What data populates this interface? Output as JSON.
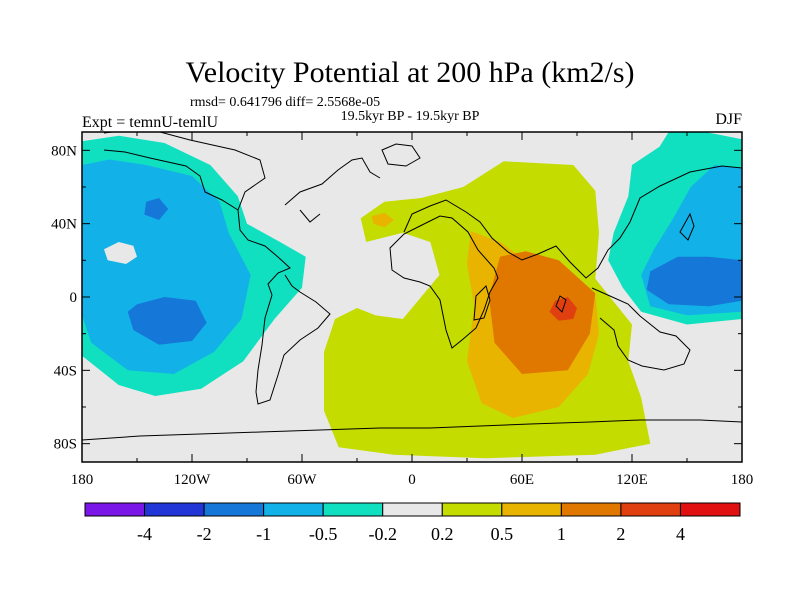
{
  "chart_data": {
    "type": "filled-contour-map",
    "title": "Velocity Potential at 200 hPa (km2/s)",
    "stats_text": "rmsd= 0.641796 diff= 2.5568e-05",
    "subtitle": "19.5kyr BP - 19.5kyr BP",
    "left_label": "Expt = temnU-temlU",
    "right_label": "DJF",
    "x_axis": {
      "range": [
        -180,
        180
      ],
      "ticks": [
        -180,
        -120,
        -60,
        0,
        60,
        120,
        180
      ],
      "tick_labels": [
        "180",
        "120W",
        "60W",
        "0",
        "60E",
        "120E",
        "180"
      ]
    },
    "y_axis": {
      "range": [
        -90,
        90
      ],
      "ticks": [
        80,
        40,
        0,
        -40,
        -80
      ],
      "tick_labels": [
        "80N",
        "40N",
        "0",
        "40S",
        "80S"
      ]
    },
    "colorbar": {
      "levels": [
        "-4",
        "-2",
        "-1",
        "-0.5",
        "-0.2",
        "0.2",
        "0.5",
        "1",
        "2",
        "4"
      ],
      "colors": [
        "#7b16e8",
        "#2236d8",
        "#1577d8",
        "#12b2e8",
        "#10e0c0",
        "#e8e8e8",
        "#c4dc00",
        "#e8b400",
        "#e07800",
        "#e04010",
        "#e01010"
      ]
    },
    "regions": [
      {
        "name": "neg-east-pacific-outer",
        "level_index": 4,
        "points": [
          [
            -180,
            85
          ],
          [
            -160,
            88
          ],
          [
            -135,
            84
          ],
          [
            -110,
            72
          ],
          [
            -95,
            55
          ],
          [
            -90,
            40
          ],
          [
            -72,
            30
          ],
          [
            -58,
            22
          ],
          [
            -60,
            5
          ],
          [
            -75,
            -12
          ],
          [
            -92,
            -35
          ],
          [
            -115,
            -50
          ],
          [
            -140,
            -54
          ],
          [
            -160,
            -48
          ],
          [
            -180,
            -32
          ]
        ]
      },
      {
        "name": "neg-east-pacific-mid",
        "level_index": 3,
        "points": [
          [
            -180,
            72
          ],
          [
            -165,
            75
          ],
          [
            -145,
            72
          ],
          [
            -120,
            66
          ],
          [
            -105,
            52
          ],
          [
            -100,
            35
          ],
          [
            -88,
            12
          ],
          [
            -93,
            -12
          ],
          [
            -108,
            -30
          ],
          [
            -130,
            -42
          ],
          [
            -155,
            -40
          ],
          [
            -175,
            -25
          ],
          [
            -180,
            -10
          ]
        ]
      },
      {
        "name": "neg-east-pacific-inner",
        "level_index": 2,
        "points": [
          [
            -150,
            -4
          ],
          [
            -135,
            0
          ],
          [
            -118,
            -2
          ],
          [
            -112,
            -14
          ],
          [
            -120,
            -24
          ],
          [
            -138,
            -26
          ],
          [
            -152,
            -18
          ],
          [
            -155,
            -8
          ]
        ]
      },
      {
        "name": "neg-north-pacific-spot",
        "level_index": 2,
        "points": [
          [
            -145,
            52
          ],
          [
            -138,
            54
          ],
          [
            -133,
            48
          ],
          [
            -138,
            42
          ],
          [
            -146,
            45
          ]
        ]
      },
      {
        "name": "weak-central-pacific-hole",
        "level_index": 5,
        "points": [
          [
            -168,
            26
          ],
          [
            -160,
            30
          ],
          [
            -152,
            28
          ],
          [
            -150,
            22
          ],
          [
            -156,
            18
          ],
          [
            -166,
            20
          ]
        ]
      },
      {
        "name": "neg-west-pacific-outer",
        "level_index": 4,
        "points": [
          [
            180,
            86
          ],
          [
            160,
            90
          ],
          [
            140,
            90
          ],
          [
            135,
            82
          ],
          [
            120,
            72
          ],
          [
            118,
            55
          ],
          [
            110,
            35
          ],
          [
            107,
            20
          ],
          [
            115,
            5
          ],
          [
            125,
            -8
          ],
          [
            150,
            -15
          ],
          [
            180,
            -12
          ]
        ]
      },
      {
        "name": "neg-west-pacific-mid",
        "level_index": 3,
        "points": [
          [
            180,
            70
          ],
          [
            165,
            72
          ],
          [
            152,
            60
          ],
          [
            142,
            42
          ],
          [
            132,
            26
          ],
          [
            125,
            12
          ],
          [
            130,
            -5
          ],
          [
            150,
            -10
          ],
          [
            180,
            -8
          ]
        ]
      },
      {
        "name": "neg-west-pacific-inner",
        "level_index": 2,
        "points": [
          [
            180,
            20
          ],
          [
            162,
            22
          ],
          [
            145,
            22
          ],
          [
            130,
            14
          ],
          [
            128,
            4
          ],
          [
            140,
            -4
          ],
          [
            162,
            -5
          ],
          [
            180,
            -2
          ]
        ]
      },
      {
        "name": "pos-africa-indian-outer",
        "level_index": 6,
        "points": [
          [
            -30,
            -6
          ],
          [
            -42,
            -12
          ],
          [
            -48,
            -30
          ],
          [
            -48,
            -62
          ],
          [
            -40,
            -82
          ],
          [
            -10,
            -86
          ],
          [
            40,
            -88
          ],
          [
            100,
            -86
          ],
          [
            130,
            -80
          ],
          [
            125,
            -55
          ],
          [
            118,
            -35
          ],
          [
            120,
            -15
          ],
          [
            100,
            10
          ],
          [
            102,
            35
          ],
          [
            100,
            58
          ],
          [
            88,
            72
          ],
          [
            50,
            74
          ],
          [
            28,
            60
          ],
          [
            5,
            54
          ],
          [
            -15,
            52
          ],
          [
            -28,
            43
          ],
          [
            -25,
            30
          ],
          [
            -5,
            35
          ],
          [
            10,
            30
          ],
          [
            15,
            12
          ],
          [
            -5,
            -12
          ],
          [
            -20,
            -10
          ]
        ]
      },
      {
        "name": "pos-africa-indian-mid",
        "level_index": 7,
        "points": [
          [
            32,
            36
          ],
          [
            48,
            30
          ],
          [
            62,
            20
          ],
          [
            85,
            12
          ],
          [
            100,
            2
          ],
          [
            102,
            -20
          ],
          [
            96,
            -42
          ],
          [
            80,
            -60
          ],
          [
            55,
            -66
          ],
          [
            38,
            -58
          ],
          [
            30,
            -35
          ],
          [
            34,
            -5
          ],
          [
            30,
            18
          ]
        ]
      },
      {
        "name": "pos-north-africa-spot",
        "level_index": 7,
        "points": [
          [
            -22,
            44
          ],
          [
            -15,
            46
          ],
          [
            -10,
            42
          ],
          [
            -15,
            38
          ],
          [
            -21,
            40
          ]
        ]
      },
      {
        "name": "pos-indian-ocean-core",
        "level_index": 8,
        "points": [
          [
            48,
            22
          ],
          [
            62,
            25
          ],
          [
            80,
            20
          ],
          [
            100,
            2
          ],
          [
            97,
            -20
          ],
          [
            85,
            -40
          ],
          [
            60,
            -42
          ],
          [
            45,
            -25
          ],
          [
            42,
            0
          ]
        ]
      },
      {
        "name": "pos-indian-ocean-max",
        "level_index": 9,
        "points": [
          [
            78,
            -2
          ],
          [
            85,
            0
          ],
          [
            90,
            -6
          ],
          [
            88,
            -12
          ],
          [
            80,
            -13
          ],
          [
            75,
            -8
          ]
        ]
      }
    ]
  }
}
